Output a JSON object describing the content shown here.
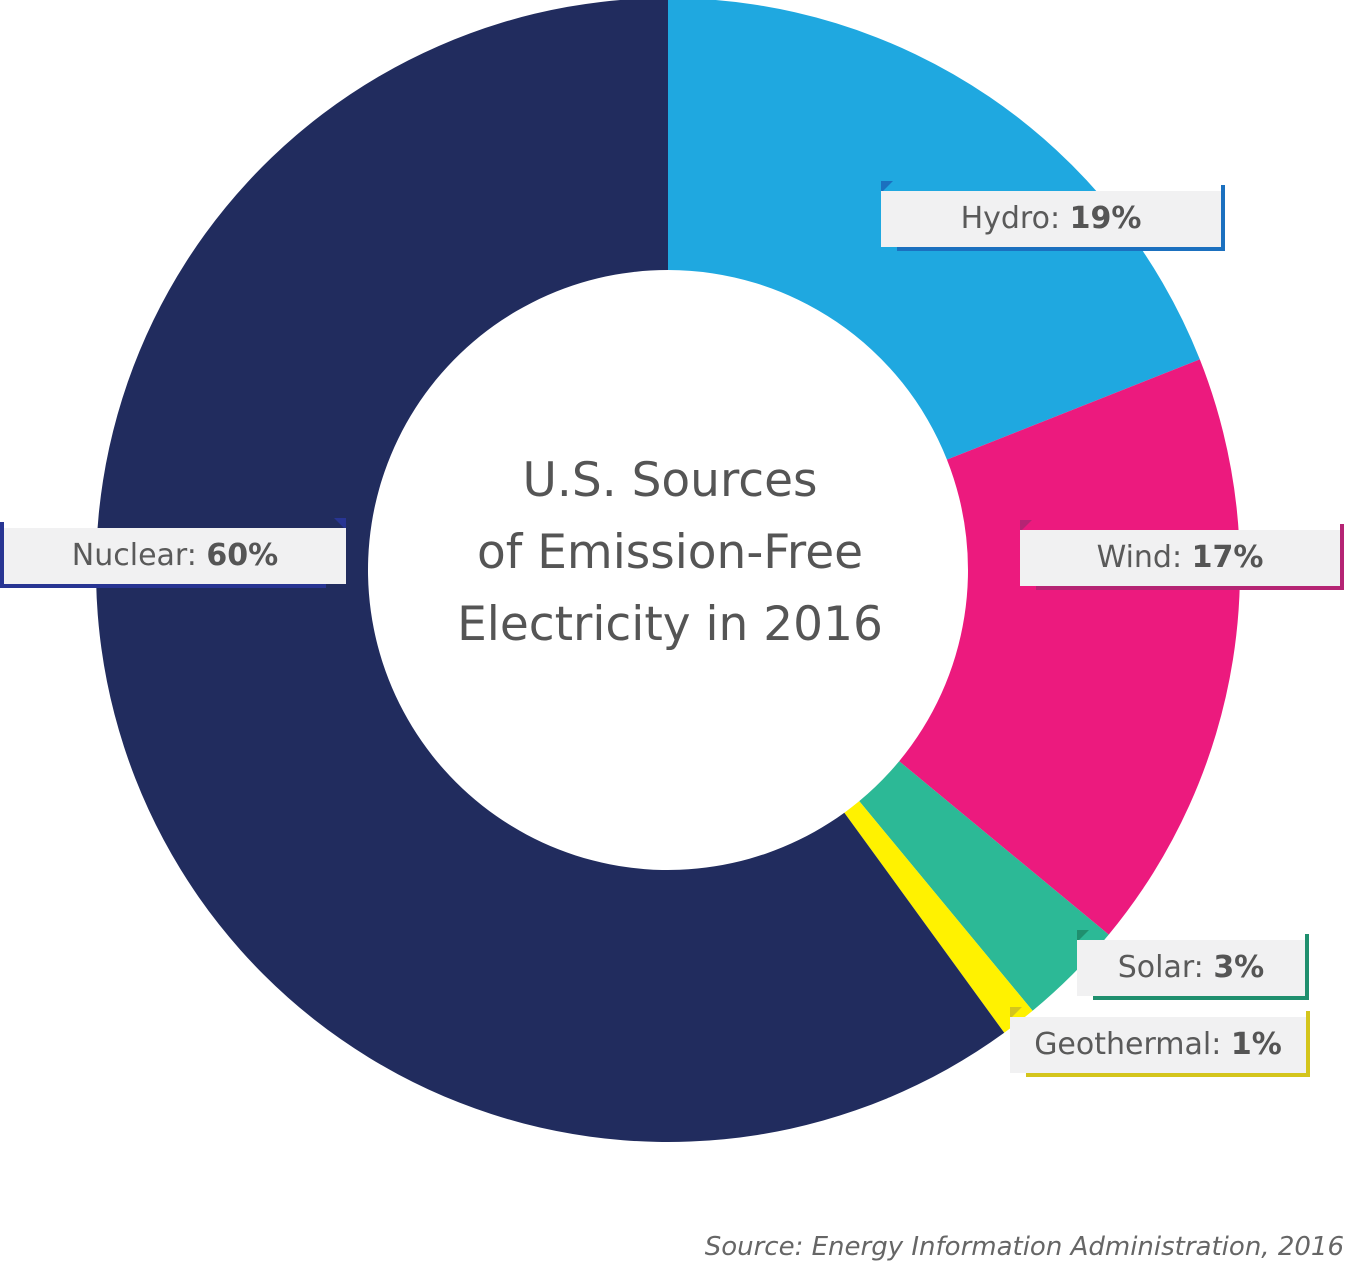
{
  "chart_data": {
    "type": "pie",
    "title": "U.S. Sources of Emission-Free Electricity in 2016",
    "title_lines": [
      "U.S. Sources",
      "of Emission-Free",
      "Electricity in 2016"
    ],
    "categories": [
      "Hydro",
      "Wind",
      "Solar",
      "Geothermal",
      "Nuclear"
    ],
    "values": [
      19,
      17,
      3,
      1,
      60
    ],
    "slices": [
      {
        "name": "Hydro",
        "value": 19,
        "label": "Hydro:",
        "value_label": "19%",
        "color": "#1fa8e0",
        "accent": "#1b70bf"
      },
      {
        "name": "Wind",
        "value": 17,
        "label": "Wind:",
        "value_label": "17%",
        "color": "#ec1a7e",
        "accent": "#b52474"
      },
      {
        "name": "Solar",
        "value": 3,
        "label": "Solar:",
        "value_label": "3%",
        "color": "#2cb996",
        "accent": "#1f8f6e"
      },
      {
        "name": "Geothermal",
        "value": 1,
        "label": "Geothermal:",
        "value_label": "1%",
        "color": "#fff200",
        "accent": "#d4c51c"
      },
      {
        "name": "Nuclear",
        "value": 60,
        "label": "Nuclear:",
        "value_label": "60%",
        "color": "#212c5e",
        "accent": "#283593"
      }
    ],
    "donut": true,
    "start": "top",
    "direction": "clockwise"
  },
  "source": "Source: Energy Information Administration, 2016"
}
